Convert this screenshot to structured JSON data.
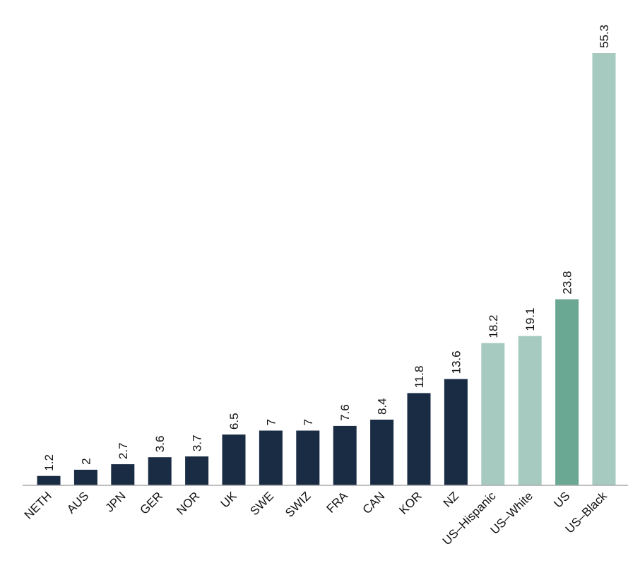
{
  "chart_data": {
    "type": "bar",
    "title": "",
    "xlabel": "",
    "ylabel": "",
    "ylim": [
      0,
      55.3
    ],
    "grid": false,
    "legend": "none",
    "categories": [
      "NETH",
      "AUS",
      "JPN",
      "GER",
      "NOR",
      "UK",
      "SWE",
      "SWIZ",
      "FRA",
      "CAN",
      "KOR",
      "NZ",
      "US–Hispanic",
      "US–White",
      "US",
      "US–Black"
    ],
    "values": [
      1.2,
      2,
      2.7,
      3.6,
      3.7,
      6.5,
      7,
      7,
      7.6,
      8.4,
      11.8,
      13.6,
      18.2,
      19.1,
      23.8,
      55.3
    ],
    "value_labels": [
      "1.2",
      "2",
      "2.7",
      "3.6",
      "3.7",
      "6.5",
      "7",
      "7",
      "7.6",
      "8.4",
      "11.8",
      "13.6",
      "18.2",
      "19.1",
      "23.8",
      "55.3"
    ],
    "bar_colors": [
      "#1a2b44",
      "#1a2b44",
      "#1a2b44",
      "#1a2b44",
      "#1a2b44",
      "#1a2b44",
      "#1a2b44",
      "#1a2b44",
      "#1a2b44",
      "#1a2b44",
      "#1a2b44",
      "#1a2b44",
      "#a6cabf",
      "#a6cabf",
      "#6aa893",
      "#a6cabf"
    ],
    "axis_color": "#aaaaaa"
  }
}
